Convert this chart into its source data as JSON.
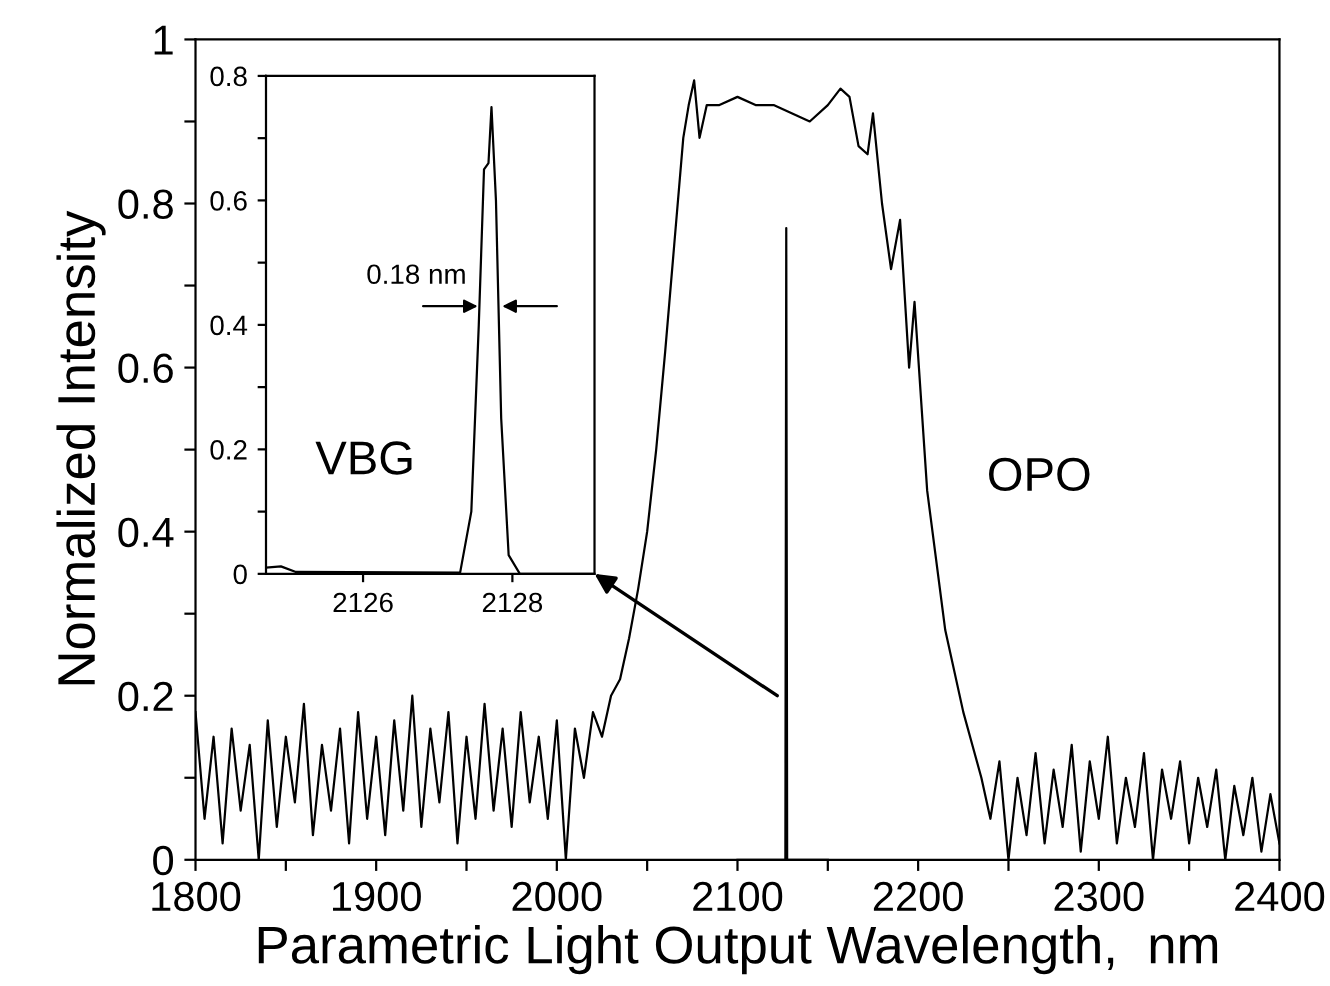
{
  "chart_data": [
    {
      "type": "line",
      "xlabel": "Parametric Light Output Wavelength,  nm",
      "ylabel": "Normalized Intensity",
      "xlim": [
        1800,
        2400
      ],
      "ylim": [
        0,
        1
      ],
      "xticks": [
        1800,
        {
          "value": 1850,
          "label": null
        },
        1900,
        {
          "value": 1950,
          "label": null
        },
        2000,
        {
          "value": 2050,
          "label": null
        },
        2100,
        {
          "value": 2150,
          "label": null
        },
        2200,
        {
          "value": 2250,
          "label": null
        },
        2300,
        {
          "value": 2350,
          "label": null
        },
        2400
      ],
      "yticks": [
        0,
        {
          "value": 0.1,
          "label": null
        },
        0.2,
        {
          "value": 0.3,
          "label": null
        },
        0.4,
        {
          "value": 0.5,
          "label": null
        },
        0.6,
        {
          "value": 0.7,
          "label": null
        },
        0.8,
        {
          "value": 0.9,
          "label": null
        },
        1
      ],
      "series": [
        {
          "name": "OPO",
          "color": "#000000",
          "x": [
            1800,
            1805,
            1810,
            1815,
            1820,
            1825,
            1830,
            1835,
            1840,
            1845,
            1850,
            1855,
            1860,
            1865,
            1870,
            1875,
            1880,
            1885,
            1890,
            1895,
            1900,
            1905,
            1910,
            1915,
            1920,
            1925,
            1930,
            1935,
            1940,
            1945,
            1950,
            1955,
            1960,
            1965,
            1970,
            1975,
            1980,
            1985,
            1990,
            1995,
            2000,
            2005,
            2010,
            2015,
            2020,
            2025,
            2030,
            2035,
            2040,
            2045,
            2050,
            2055,
            2060,
            2065,
            2070,
            2073,
            2076,
            2079,
            2083,
            2090,
            2100,
            2110,
            2120,
            2130,
            2140,
            2150,
            2157,
            2162,
            2167,
            2172,
            2175,
            2180,
            2185,
            2190,
            2195,
            2198,
            2205,
            2215,
            2225,
            2230,
            2235,
            2240,
            2245,
            2250,
            2255,
            2260,
            2265,
            2270,
            2275,
            2280,
            2285,
            2290,
            2295,
            2300,
            2305,
            2310,
            2315,
            2320,
            2325,
            2330,
            2335,
            2340,
            2345,
            2350,
            2355,
            2360,
            2365,
            2370,
            2375,
            2380,
            2385,
            2390,
            2395,
            2400
          ],
          "values": [
            0.18,
            0.05,
            0.15,
            0.02,
            0.16,
            0.06,
            0.14,
            0.0,
            0.17,
            0.04,
            0.15,
            0.07,
            0.19,
            0.03,
            0.14,
            0.06,
            0.16,
            0.02,
            0.18,
            0.05,
            0.15,
            0.03,
            0.17,
            0.06,
            0.2,
            0.04,
            0.16,
            0.07,
            0.18,
            0.02,
            0.15,
            0.05,
            0.19,
            0.06,
            0.16,
            0.04,
            0.18,
            0.07,
            0.15,
            0.05,
            0.17,
            0.0,
            0.16,
            0.1,
            0.18,
            0.15,
            0.2,
            0.22,
            0.27,
            0.33,
            0.4,
            0.5,
            0.62,
            0.75,
            0.88,
            0.92,
            0.95,
            0.88,
            0.92,
            0.92,
            0.93,
            0.92,
            0.92,
            0.91,
            0.9,
            0.92,
            0.94,
            0.93,
            0.87,
            0.86,
            0.91,
            0.8,
            0.72,
            0.78,
            0.6,
            0.68,
            0.45,
            0.28,
            0.18,
            0.14,
            0.1,
            0.05,
            0.12,
            0.0,
            0.1,
            0.03,
            0.13,
            0.02,
            0.11,
            0.04,
            0.14,
            0.01,
            0.12,
            0.05,
            0.15,
            0.02,
            0.1,
            0.04,
            0.13,
            0.0,
            0.11,
            0.05,
            0.12,
            0.02,
            0.1,
            0.04,
            0.11,
            0.0,
            0.09,
            0.03,
            0.1,
            0.01,
            0.08,
            0.02
          ]
        },
        {
          "color": "#000000",
          "x": [
            2100,
            2126.5,
            2127,
            2127.5,
            2150
          ],
          "values": [
            0,
            0,
            0.77,
            0,
            0
          ]
        }
      ]
    },
    {
      "type": "line",
      "xlim": [
        2124.7,
        2129.1
      ],
      "ylim": [
        0,
        0.8
      ],
      "xticks": [
        2126,
        2128
      ],
      "yticks": [
        0,
        {
          "value": 0.1,
          "label": null
        },
        0.2,
        {
          "value": 0.3,
          "label": null
        },
        0.4,
        {
          "value": 0.5,
          "label": null
        },
        0.6,
        {
          "value": 0.7,
          "label": null
        },
        0.8
      ],
      "annotations": [
        {
          "text": "0.18 nm",
          "x": 2127.7,
          "y": 0.43
        }
      ],
      "series": [
        {
          "name": "VBG",
          "color": "#000000",
          "x": [
            2124.7,
            2124.9,
            2125.1,
            2127.3,
            2127.45,
            2127.55,
            2127.62,
            2127.68,
            2127.72,
            2127.78,
            2127.85,
            2127.95,
            2128.1,
            2129.1
          ],
          "values": [
            0.01,
            0.012,
            0.003,
            0.002,
            0.1,
            0.4,
            0.65,
            0.66,
            0.75,
            0.6,
            0.25,
            0.03,
            0.0,
            0.0
          ]
        }
      ]
    }
  ]
}
